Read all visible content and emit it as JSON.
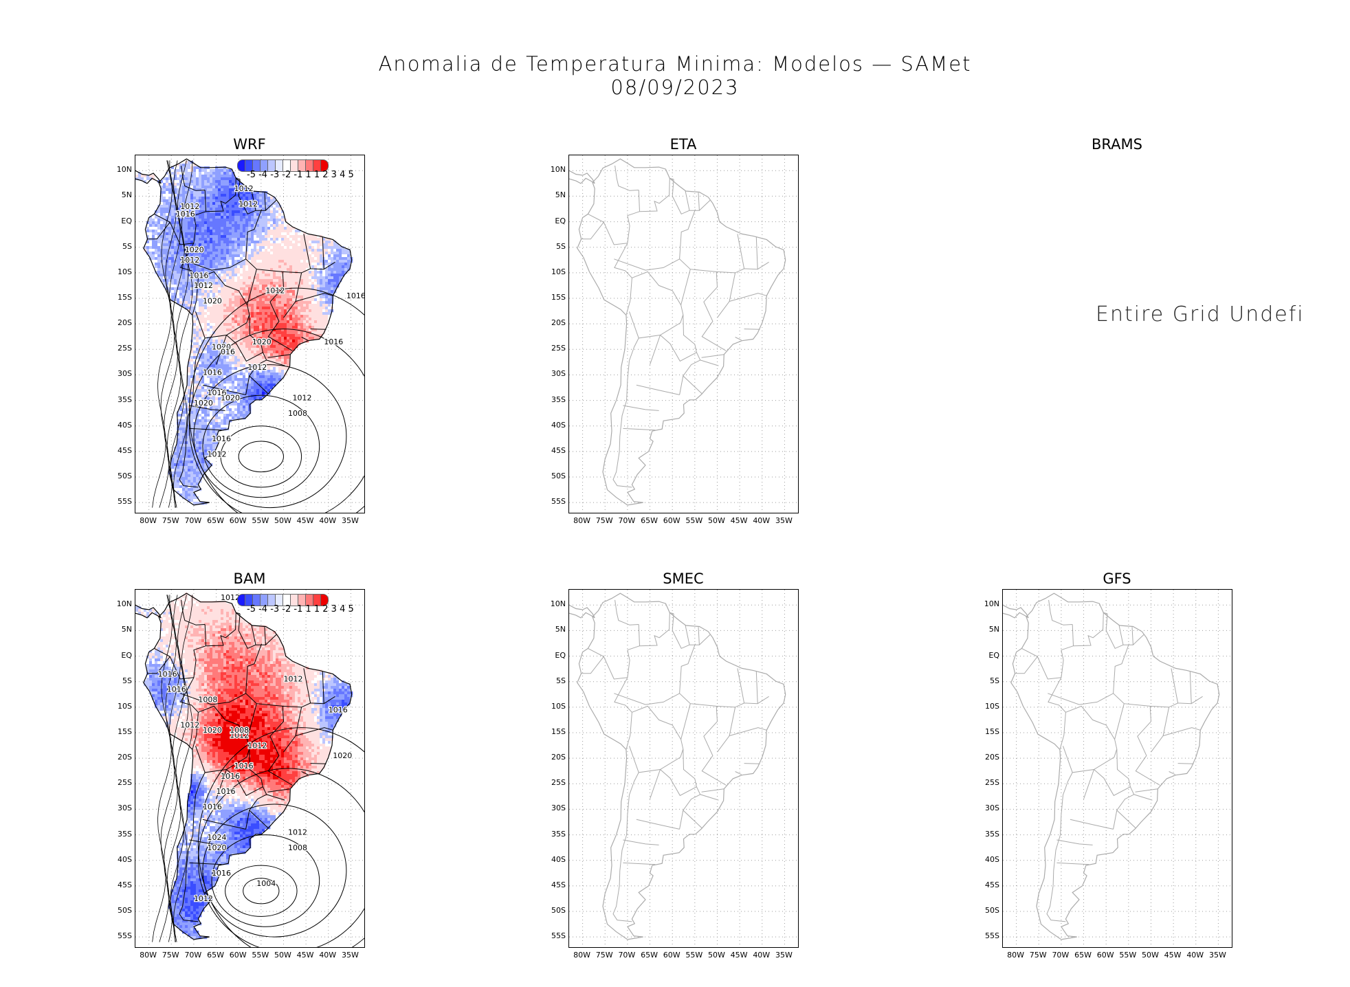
{
  "title": {
    "line1": "Anomalia de Temperatura Minima: Modelos — SAMet",
    "line2": "08/09/2023"
  },
  "panels": [
    {
      "name": "WRF",
      "state": "filled"
    },
    {
      "name": "ETA",
      "state": "empty"
    },
    {
      "name": "BRAMS",
      "state": "undefined",
      "message": "Entire Grid Undefine"
    },
    {
      "name": "BAM",
      "state": "filled"
    },
    {
      "name": "SMEC",
      "state": "empty"
    },
    {
      "name": "GFS",
      "state": "empty"
    }
  ],
  "axes": {
    "lat_labels": [
      "10N",
      "5N",
      "EQ",
      "5S",
      "10S",
      "15S",
      "20S",
      "25S",
      "30S",
      "35S",
      "40S",
      "45S",
      "50S",
      "55S"
    ],
    "lon_labels": [
      "80W",
      "75W",
      "70W",
      "65W",
      "60W",
      "55W",
      "50W",
      "45W",
      "40W",
      "35W"
    ]
  },
  "colorbar": {
    "labels": "-5 -4 -3 -2 -1 1 1 2 3 4 5",
    "colors": [
      "#1a1aff",
      "#3a4dff",
      "#6677ff",
      "#8fa0ff",
      "#bcc6ff",
      "#e6ebff",
      "#ffffff",
      "#ffe0e0",
      "#ffb3b3",
      "#ff7a7a",
      "#ff4040",
      "#ee0000"
    ]
  },
  "contour_labels": {
    "WRF": [
      "1012",
      "1012",
      "1016",
      "1012",
      "1020",
      "1012",
      "1016",
      "1012",
      "1020",
      "1012",
      "1016",
      "1016",
      "1020",
      "1020",
      "016",
      "1012",
      "1016",
      "1016",
      "1020",
      "1020",
      "1012",
      "1008",
      "1016",
      "1012"
    ],
    "BAM": [
      "1012",
      "1016",
      "1016",
      "1008",
      "1012",
      "1012",
      "1016",
      "1012",
      "1020",
      "1008",
      "1012",
      "1020",
      "1016",
      "1016",
      "1016",
      "1016",
      "1024",
      "1020",
      "1016",
      "1012",
      "1008",
      "1004",
      "1012"
    ]
  }
}
